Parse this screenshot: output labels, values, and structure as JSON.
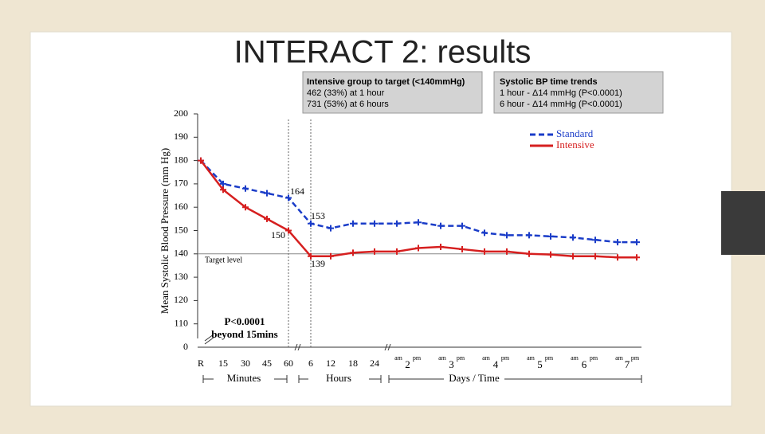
{
  "chart_data": {
    "type": "line",
    "title": "INTERACT 2:  results",
    "ylabel": "Mean Systolic Blood Pressure (mm Hg)",
    "categories": [
      "R",
      "15",
      "30",
      "45",
      "60",
      "6",
      "12",
      "18",
      "24",
      "am",
      "pm",
      "am",
      "pm",
      "am",
      "pm",
      "am",
      "pm",
      "am",
      "pm",
      "am",
      "pm"
    ],
    "day_labels": [
      "2",
      "3",
      "4",
      "5",
      "6",
      "7"
    ],
    "group_labels": [
      "Minutes",
      "Hours",
      "Days / Time"
    ],
    "series": [
      {
        "name": "Standard",
        "color": "#1a3cc8",
        "values": [
          180,
          170,
          168,
          166,
          164,
          153,
          151,
          153,
          153,
          153,
          153.5,
          152,
          152,
          149,
          148,
          148,
          147.5,
          147,
          146,
          145,
          145
        ]
      },
      {
        "name": "Intensive",
        "color": "#d61f1f",
        "values": [
          180,
          167.5,
          160,
          155,
          150,
          139,
          139,
          140.5,
          141,
          141,
          142.5,
          143,
          142,
          141,
          141,
          140,
          139.7,
          139,
          139,
          138.5,
          138.5
        ]
      }
    ],
    "ylim": [
      100,
      200
    ],
    "yticks": [
      110,
      120,
      130,
      140,
      150,
      160,
      170,
      180,
      190,
      200
    ],
    "origin_label": "0",
    "target": {
      "value": 140,
      "label": "Target level"
    },
    "annotations": [
      "164",
      "153",
      "150",
      "139"
    ],
    "pvalue": [
      "P<0.0001",
      "beyond 15mins"
    ],
    "box1": [
      "Intensive group to target (<140mmHg)",
      "462 (33%) at 1 hour",
      "731 (53%) at 6 hours"
    ],
    "box2": [
      "Systolic BP time trends",
      "1 hour - Δ14 mmHg (P<0.0001)",
      "6 hour - Δ14 mmHg (P<0.0001)"
    ]
  }
}
